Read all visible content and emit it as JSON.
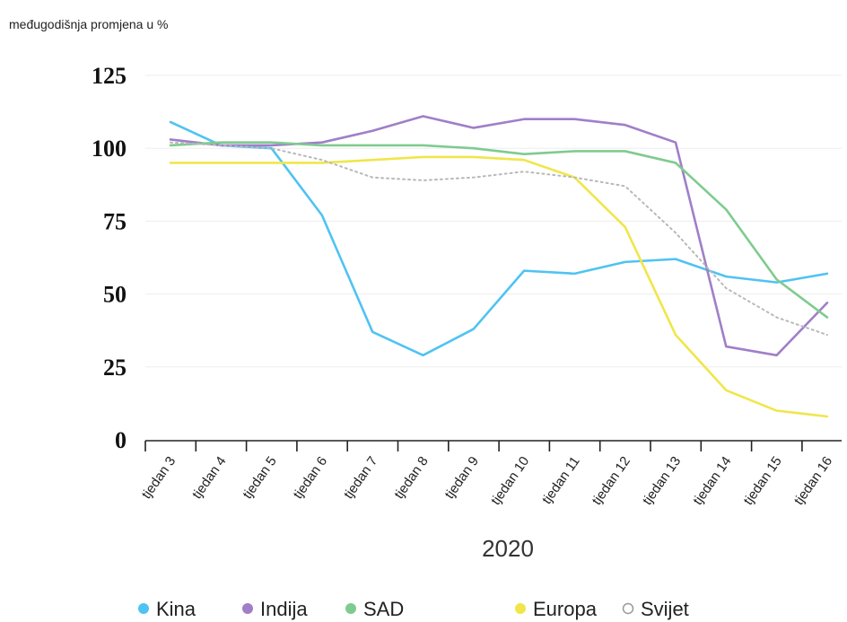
{
  "chart_data": {
    "type": "line",
    "ylabel": "međugodišnja promjena u %",
    "xlabel": "2020",
    "categories": [
      "tjedan 3",
      "tjedan 4",
      "tjedan 5",
      "tjedan 6",
      "tjedan 7",
      "tjedan 8",
      "tjedan 9",
      "tjedan 10",
      "tjedan 11",
      "tjedan 12",
      "tjedan 13",
      "tjedan 14",
      "tjedan 15",
      "tjedan 16"
    ],
    "ylim": [
      0,
      125
    ],
    "yticks": [
      "0",
      "25",
      "50",
      "75",
      "100",
      "125"
    ],
    "grid": true,
    "legend_position": "bottom",
    "series": [
      {
        "name": "Kina",
        "color": "#4fc3f2",
        "style": "solid",
        "values": [
          109,
          101,
          100,
          77,
          37,
          29,
          38,
          58,
          57,
          61,
          62,
          56,
          54,
          57
        ]
      },
      {
        "name": "Indija",
        "color": "#a07fc8",
        "style": "solid",
        "values": [
          103,
          101,
          101,
          102,
          106,
          111,
          107,
          110,
          110,
          108,
          102,
          32,
          29,
          47
        ]
      },
      {
        "name": "SAD",
        "color": "#7fcb8f",
        "style": "solid",
        "values": [
          101,
          102,
          102,
          101,
          101,
          101,
          100,
          98,
          99,
          99,
          95,
          79,
          55,
          42
        ]
      },
      {
        "name": "Europa",
        "color": "#f0e64a",
        "style": "solid",
        "values": [
          95,
          95,
          95,
          95,
          96,
          97,
          97,
          96,
          90,
          73,
          36,
          17,
          10,
          8
        ]
      },
      {
        "name": "Svijet",
        "color": "#b8b8b8",
        "style": "dotted",
        "values": [
          102,
          101,
          100,
          96,
          90,
          89,
          90,
          92,
          90,
          87,
          71,
          52,
          42,
          36
        ]
      }
    ]
  }
}
